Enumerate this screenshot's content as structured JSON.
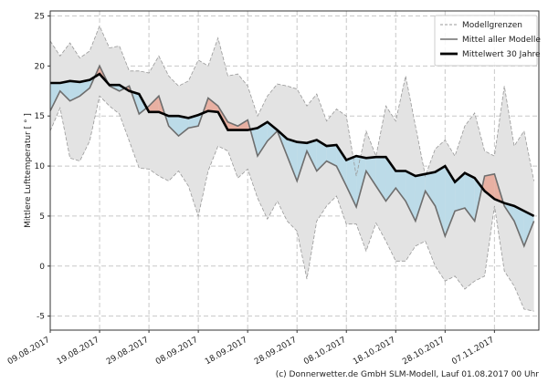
{
  "chart_data": {
    "type": "line",
    "title": "",
    "xlabel": "",
    "ylabel": "Mittlere Lufttemperatur [ ° ]",
    "ylim": [
      -6.4,
      25.5
    ],
    "xlim": [
      "09.08.2017",
      "16.11.2017"
    ],
    "yticks": [
      -5,
      0,
      5,
      10,
      15,
      20,
      25
    ],
    "xticks": [
      "09.08.2017",
      "19.08.2017",
      "29.08.2017",
      "08.09.2017",
      "18.09.2017",
      "28.09.2017",
      "08.10.2017",
      "18.10.2017",
      "28.10.2017",
      "07.11.2017"
    ],
    "grid": true,
    "legend_position": "top-right",
    "legend": [
      "Modellgrenzen",
      "Mittel aller Modelle",
      "Mittelwert 30 Jahre"
    ],
    "colors": {
      "band": "#e3e3e3",
      "band_edge": "#999999",
      "model_mean": "#6e6e6e",
      "climatology": "#000000",
      "above": "#e8b0a2",
      "below": "#bcdbe8"
    },
    "x": [
      "09.08.2017",
      "11.08.2017",
      "13.08.2017",
      "15.08.2017",
      "17.08.2017",
      "19.08.2017",
      "21.08.2017",
      "23.08.2017",
      "25.08.2017",
      "27.08.2017",
      "29.08.2017",
      "31.08.2017",
      "02.09.2017",
      "04.09.2017",
      "06.09.2017",
      "08.09.2017",
      "10.09.2017",
      "12.09.2017",
      "14.09.2017",
      "16.09.2017",
      "18.09.2017",
      "20.09.2017",
      "22.09.2017",
      "24.09.2017",
      "26.09.2017",
      "28.09.2017",
      "30.09.2017",
      "02.10.2017",
      "04.10.2017",
      "06.10.2017",
      "08.10.2017",
      "10.10.2017",
      "12.10.2017",
      "14.10.2017",
      "16.10.2017",
      "18.10.2017",
      "20.10.2017",
      "22.10.2017",
      "24.10.2017",
      "26.10.2017",
      "28.10.2017",
      "30.10.2017",
      "01.11.2017",
      "03.11.2017",
      "05.11.2017",
      "07.11.2017",
      "09.11.2017",
      "11.11.2017",
      "13.11.2017",
      "15.11.2017"
    ],
    "series": [
      {
        "name": "Modellgrenzen",
        "role": "upper",
        "values": [
          22.5,
          21,
          22.3,
          20.8,
          21.5,
          24,
          21.8,
          22,
          19.5,
          19.5,
          19.3,
          21,
          19,
          18,
          18.5,
          20.6,
          20,
          22.8,
          19,
          19.2,
          18,
          15,
          17,
          18.2,
          18,
          17.7,
          16,
          17.2,
          14.5,
          15.7,
          15,
          9,
          13.5,
          11,
          16,
          14.5,
          19,
          14,
          9,
          11.7,
          12.6,
          11,
          14,
          15.3,
          11.5,
          11,
          18,
          12,
          13.5,
          8.5
        ]
      },
      {
        "name": "Modellgrenzen",
        "role": "lower",
        "values": [
          13.5,
          15.8,
          10.8,
          10.5,
          12.5,
          17,
          16,
          15.2,
          12.5,
          9.8,
          9.7,
          9,
          8.5,
          9.5,
          8,
          5,
          9.5,
          12,
          11.5,
          8.8,
          9.7,
          6.8,
          4.7,
          6.5,
          4.5,
          3.5,
          -1.3,
          4.5,
          6,
          7,
          4.2,
          4.2,
          1.5,
          4.3,
          2.5,
          0.5,
          0.5,
          2,
          2.5,
          0,
          -1.5,
          -1,
          -2.3,
          -1.5,
          -1,
          6,
          -0.5,
          -2,
          -4.3,
          -4.5
        ]
      },
      {
        "name": "Mittel aller Modelle",
        "role": "mean",
        "values": [
          15.5,
          17.5,
          16.5,
          17,
          17.8,
          20,
          18,
          17.5,
          18,
          15.2,
          16,
          17,
          14,
          13,
          13.8,
          14,
          16.8,
          16,
          14.4,
          14,
          14.6,
          11,
          12.5,
          13.5,
          11,
          8.5,
          11.5,
          9.5,
          10.5,
          10,
          8,
          5.9,
          9.5,
          8,
          6.5,
          7.8,
          6.5,
          4.5,
          7.5,
          6,
          3,
          5.5,
          5.8,
          4.5,
          9,
          9.2,
          6,
          4.5,
          2,
          4.5
        ]
      },
      {
        "name": "Mittelwert 30 Jahre",
        "role": "climatology",
        "values": [
          18.3,
          18.3,
          18.5,
          18.4,
          18.6,
          19.2,
          18.1,
          18.1,
          17.5,
          17.2,
          15.4,
          15.4,
          15,
          15,
          14.8,
          15.1,
          15.5,
          15.4,
          13.6,
          13.6,
          13.6,
          13.8,
          14.4,
          13.6,
          12.7,
          12.4,
          12.3,
          12.6,
          12,
          12.1,
          10.6,
          11,
          10.8,
          10.9,
          10.9,
          9.5,
          9.5,
          9,
          9.2,
          9.4,
          10,
          8.4,
          9.3,
          8.8,
          7.5,
          6.7,
          6.3,
          6,
          5.5,
          5
        ]
      }
    ]
  },
  "footer": "(c) Donnerwetter.de GmbH SLM-Modell, Lauf 01.08.2017 00 Uhr"
}
